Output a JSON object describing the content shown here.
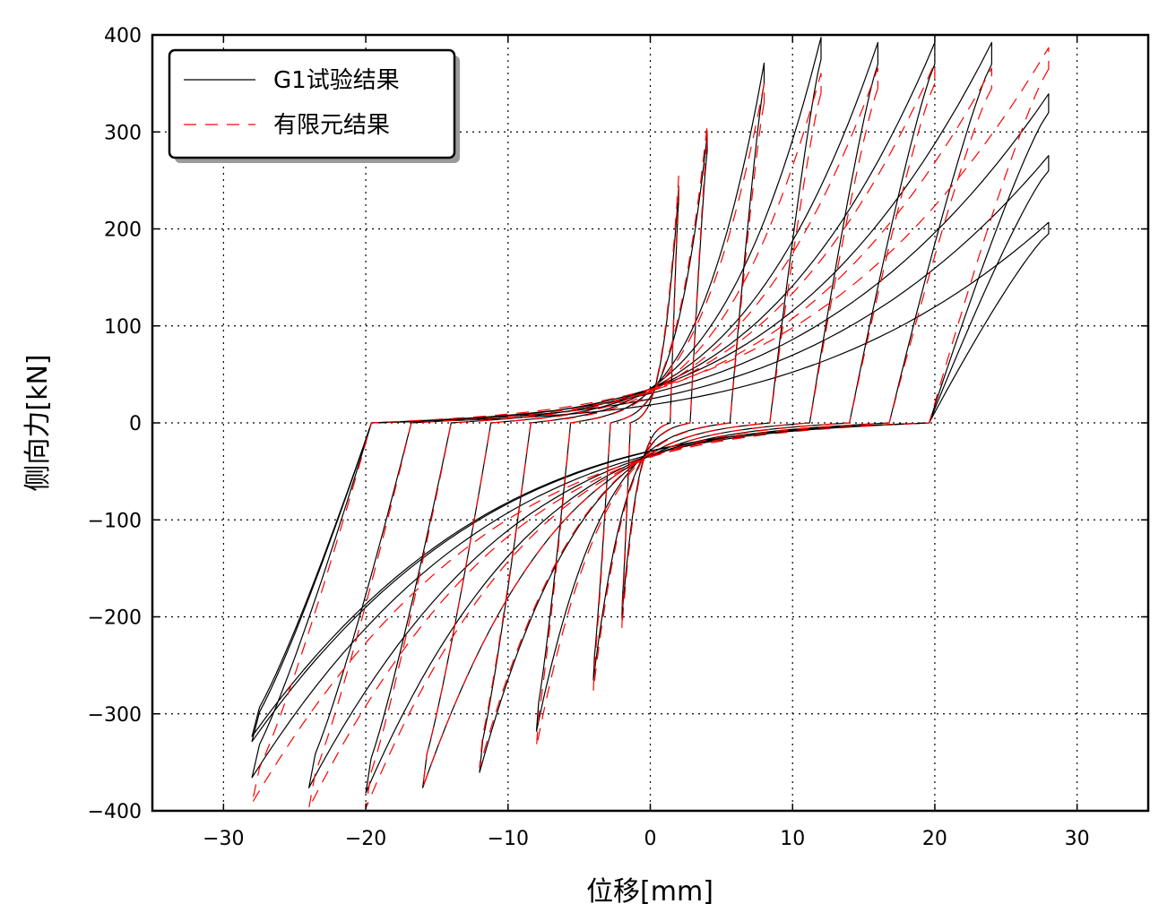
{
  "chart_data": {
    "type": "line",
    "title": "",
    "xlabel": "位移[mm]",
    "ylabel": "侧向力[kN]",
    "xlim": [
      -35,
      35
    ],
    "ylim": [
      -400,
      400
    ],
    "xticks": [
      -30,
      -20,
      -10,
      0,
      10,
      20,
      30
    ],
    "xtick_labels": [
      "−30",
      "−20",
      "−10",
      "0",
      "10",
      "20",
      "30"
    ],
    "yticks": [
      -400,
      -300,
      -200,
      -100,
      0,
      100,
      200,
      300,
      400
    ],
    "ytick_labels": [
      "−400",
      "−300",
      "−200",
      "−100",
      "0",
      "100",
      "200",
      "300",
      "400"
    ],
    "grid": true,
    "legend_position": "top-left",
    "series": [
      {
        "name": "G1试验结果",
        "color": "#000000",
        "dash": "solid",
        "loops": [
          {
            "amp": 2,
            "fpos": 230,
            "fneg": -190
          },
          {
            "amp": 4,
            "fpos": 280,
            "fneg": -250
          },
          {
            "amp": 8,
            "fpos": 350,
            "fneg": -300
          },
          {
            "amp": 12,
            "fpos": 375,
            "fneg": -340
          },
          {
            "amp": 16,
            "fpos": 370,
            "fneg": -355
          },
          {
            "amp": 20,
            "fpos": 370,
            "fneg": -360
          },
          {
            "amp": 24,
            "fpos": 370,
            "fneg": -355
          },
          {
            "amp": 28,
            "fpos": 320,
            "fneg": -345
          },
          {
            "amp": 28,
            "fpos": 260,
            "fneg": -310
          },
          {
            "amp": 28,
            "fpos": 195,
            "fneg": -305
          }
        ]
      },
      {
        "name": "有限元结果",
        "color": "#ff0000",
        "dash": "dashed",
        "loops": [
          {
            "amp": 2,
            "fpos": 240,
            "fneg": -200
          },
          {
            "amp": 4,
            "fpos": 290,
            "fneg": -260
          },
          {
            "amp": 8,
            "fpos": 330,
            "fneg": -315
          },
          {
            "amp": 12,
            "fpos": 340,
            "fneg": -335
          },
          {
            "amp": 16,
            "fpos": 345,
            "fneg": -355
          },
          {
            "amp": 20,
            "fpos": 350,
            "fneg": -375
          },
          {
            "amp": 24,
            "fpos": 345,
            "fneg": -375
          },
          {
            "amp": 28,
            "fpos": 365,
            "fneg": -370
          }
        ]
      }
    ]
  }
}
